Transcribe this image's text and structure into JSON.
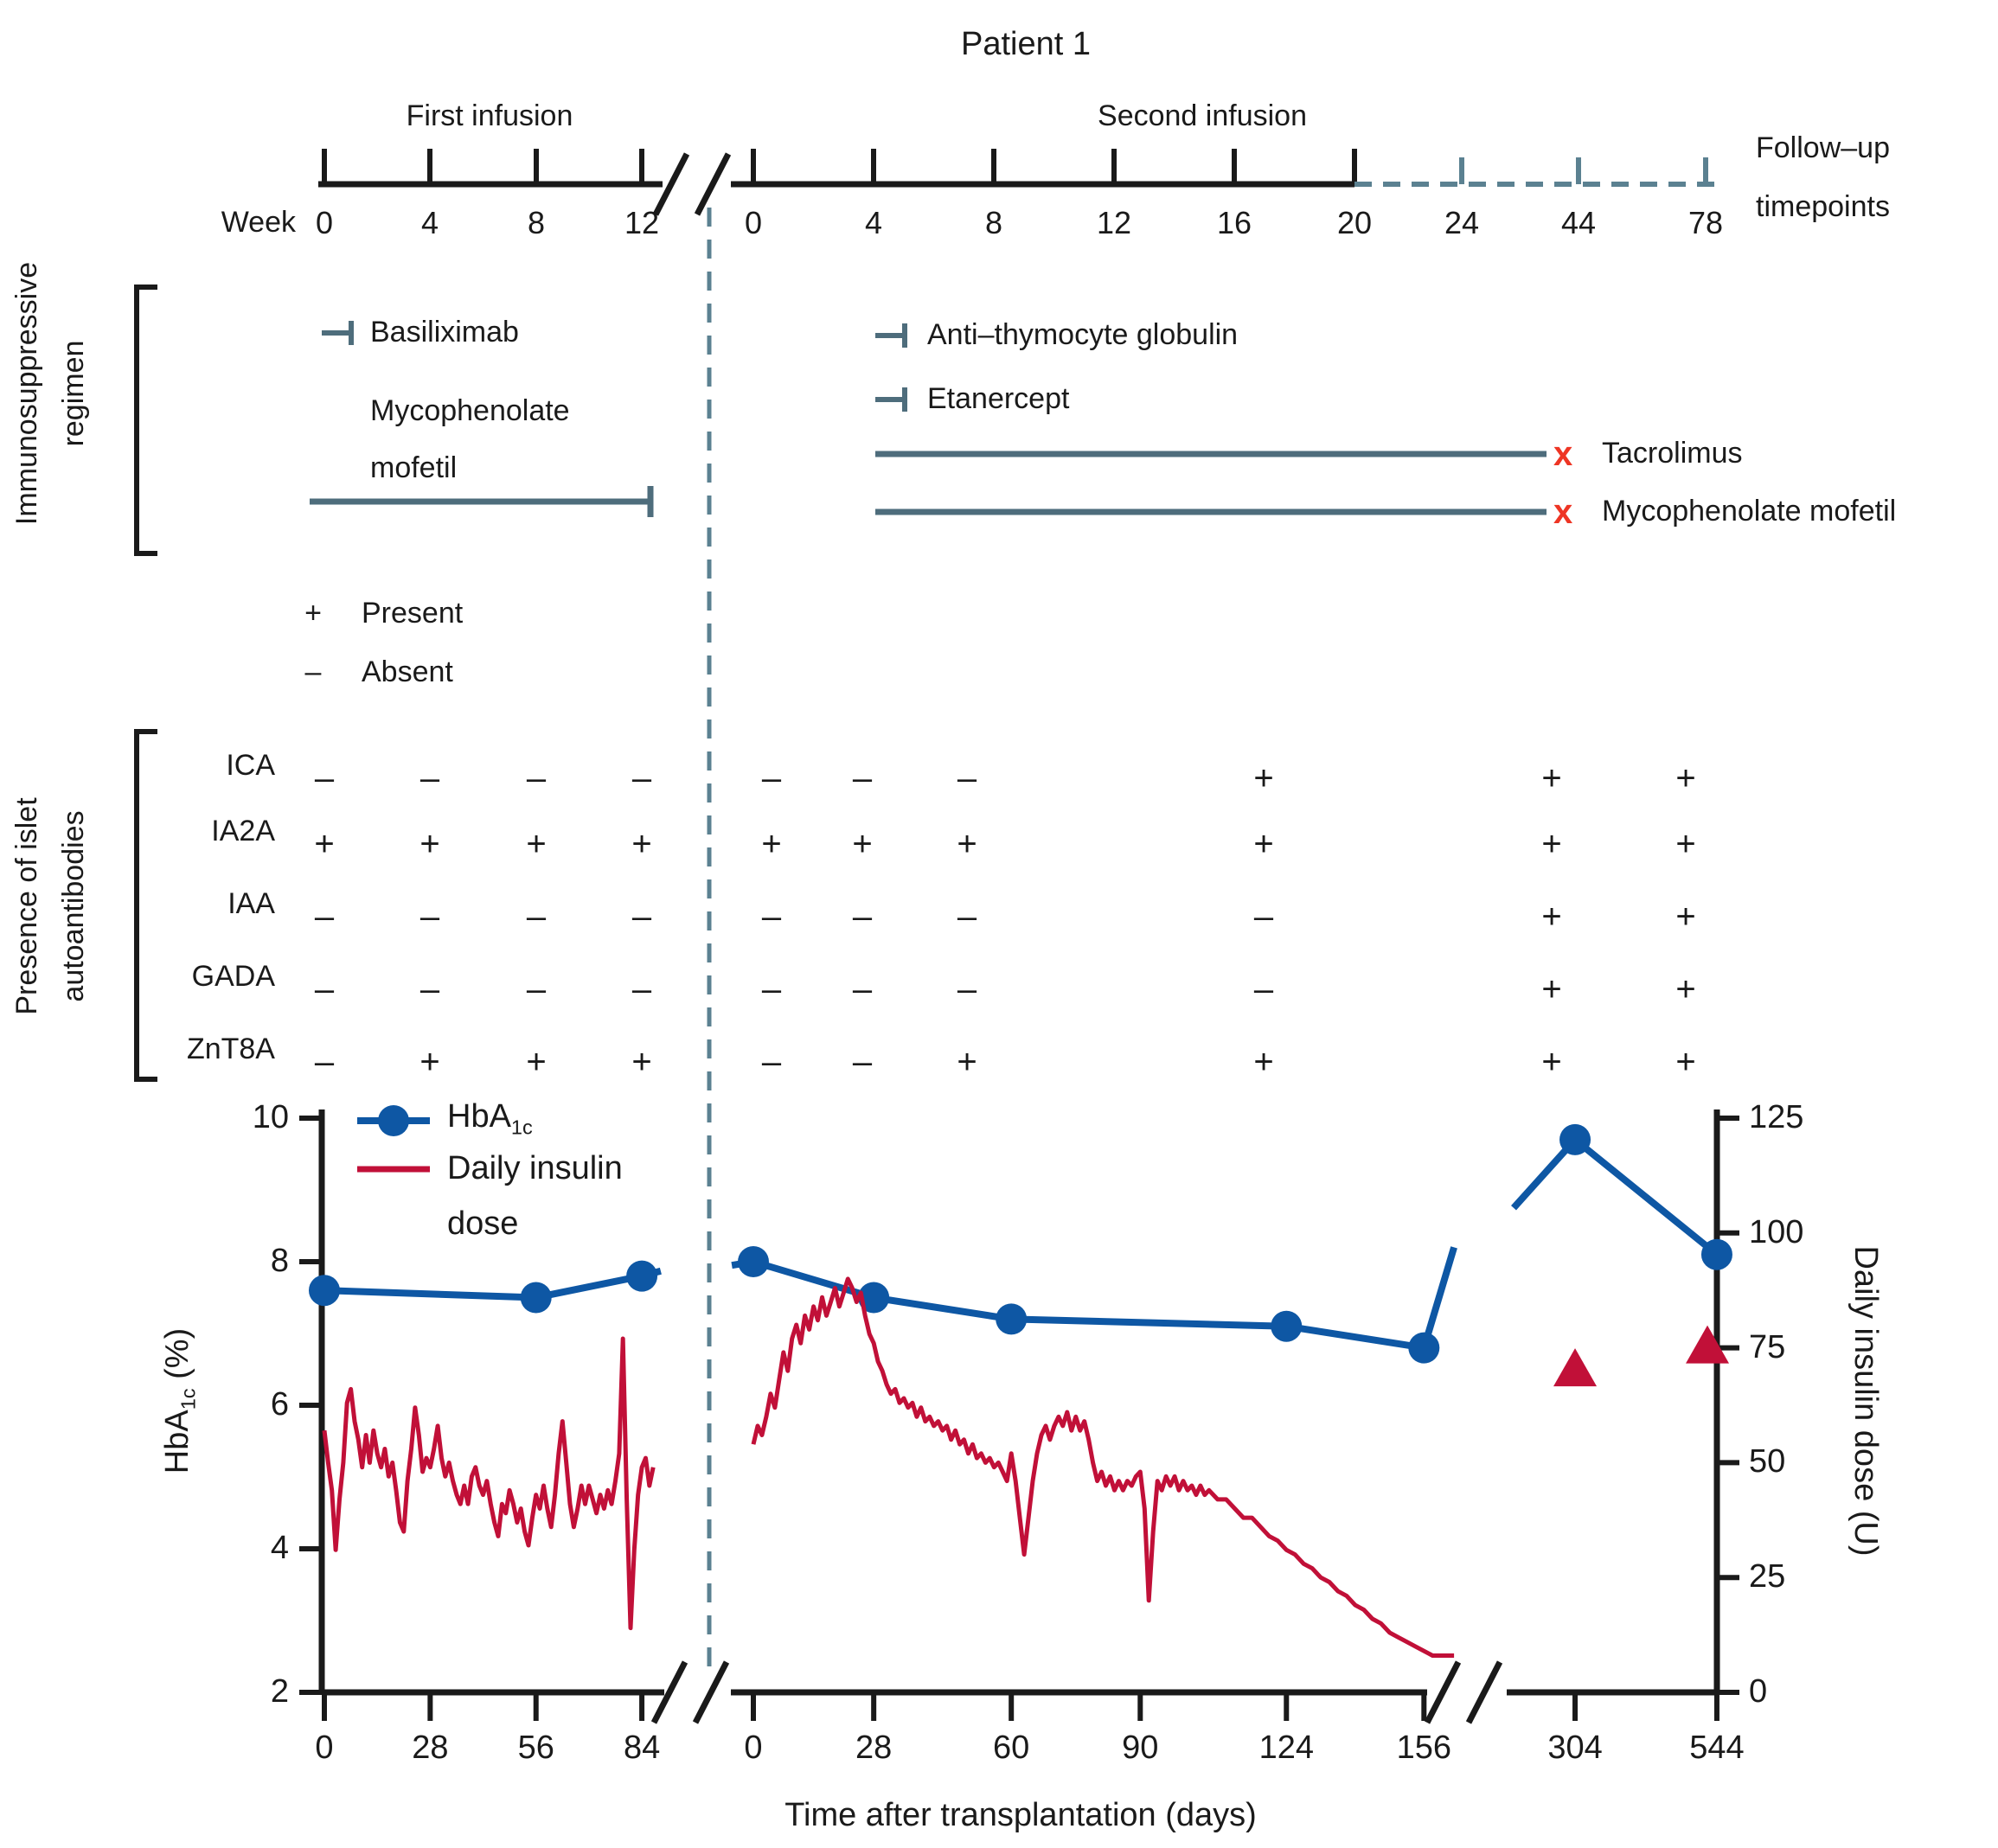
{
  "title": "Patient 1",
  "colors": {
    "blue": "#0e57a4",
    "crimson": "#c11038",
    "teal": "#4e6d7c",
    "teal_dash": "#5b8191",
    "x_red": "#ee3524",
    "ink": "#1a1a1a"
  },
  "timeline": {
    "week_label": "Week",
    "first_infusion": {
      "title": "First infusion",
      "ticks": [
        "0",
        "4",
        "8",
        "12"
      ]
    },
    "second_infusion": {
      "title": "Second infusion",
      "ticks": [
        "0",
        "4",
        "8",
        "12",
        "16",
        "20"
      ]
    },
    "followup": {
      "ticks": [
        "24",
        "44",
        "78"
      ],
      "label_line1": "Follow–up",
      "label_line2": "timepoints"
    }
  },
  "regimen": {
    "label_line1": "Immunosuppressive",
    "label_line2": "regimen",
    "basiliximab": "Basiliximab",
    "mmf_line1": "Mycophenolate",
    "mmf_line2": "mofetil",
    "atg": "Anti–thymocyte globulin",
    "etanercept": "Etanercept",
    "tacrolimus": "Tacrolimus",
    "mmf_second": "Mycophenolate mofetil",
    "x_symbol": "x"
  },
  "key": {
    "plus": "+",
    "plus_label": "Present",
    "minus": "–",
    "minus_label": "Absent"
  },
  "antibodies": {
    "label_line1": "Presence of islet",
    "label_line2": "autoantibodies",
    "rows": [
      {
        "label": "ICA",
        "values": [
          "–",
          "–",
          "–",
          "–",
          "–",
          "–",
          "–",
          "+",
          "+",
          "+"
        ]
      },
      {
        "label": "IA2A",
        "values": [
          "+",
          "+",
          "+",
          "+",
          "+",
          "+",
          "+",
          "+",
          "+",
          "+"
        ]
      },
      {
        "label": "IAA",
        "values": [
          "–",
          "–",
          "–",
          "–",
          "–",
          "–",
          "–",
          "–",
          "+",
          "+"
        ]
      },
      {
        "label": "GADA",
        "values": [
          "–",
          "–",
          "–",
          "–",
          "–",
          "–",
          "–",
          "–",
          "+",
          "+"
        ]
      },
      {
        "label": "ZnT8A",
        "values": [
          "–",
          "+",
          "+",
          "+",
          "–",
          "–",
          "+",
          "+",
          "+",
          "+"
        ]
      }
    ]
  },
  "chart_data": {
    "type": "line",
    "title": "Patient 1 — HbA1c and daily insulin dose after islet transplantation",
    "x_label": "Time after transplantation (days)",
    "y_left": {
      "label_main": "HbA",
      "label_sub": "1c",
      "label_suffix": " (%)",
      "ticks": [
        10,
        8,
        6,
        4,
        2
      ],
      "range": [
        2,
        10
      ]
    },
    "y_right": {
      "label": "Daily insulin dose (U)",
      "ticks": [
        125,
        100,
        75,
        50,
        25,
        0
      ],
      "range": [
        0,
        125
      ]
    },
    "x_segments": [
      {
        "name": "first-infusion",
        "ticks": [
          0,
          28,
          56,
          84
        ]
      },
      {
        "name": "second-infusion",
        "ticks": [
          0,
          28,
          60,
          90,
          124,
          156
        ]
      },
      {
        "name": "follow-up",
        "ticks": [
          304,
          544
        ]
      }
    ],
    "legend": {
      "hba1c_main": "HbA",
      "hba1c_sub": "1c",
      "insulin_line1": "Daily insulin",
      "insulin_line2": "dose"
    },
    "series": {
      "hba1c": {
        "axis": "left",
        "segments": [
          [
            [
              0,
              7.6,
              1
            ],
            [
              56,
              7.5,
              1
            ],
            [
              84,
              7.8,
              1
            ],
            [
              89,
              7.87,
              0
            ]
          ],
          [
            [
              -5,
              7.95,
              0
            ],
            [
              0,
              8.0,
              1
            ],
            [
              28,
              7.5,
              1
            ],
            [
              60,
              7.2,
              1
            ],
            [
              124,
              7.1,
              1
            ],
            [
              156,
              6.8,
              1
            ],
            [
              163,
              8.2,
              0
            ]
          ],
          [
            [
              200,
              8.75,
              0
            ],
            [
              304,
              9.7,
              1
            ],
            [
              544,
              8.1,
              1
            ]
          ]
        ]
      },
      "insulin_line": {
        "axis": "right",
        "segments": [
          [
            [
              0,
              57
            ],
            [
              1,
              50
            ],
            [
              2,
              44
            ],
            [
              3,
              31
            ],
            [
              4,
              42
            ],
            [
              5,
              50
            ],
            [
              6,
              63
            ],
            [
              7,
              66
            ],
            [
              8,
              59
            ],
            [
              9,
              55
            ],
            [
              10,
              49
            ],
            [
              11,
              56
            ],
            [
              12,
              50
            ],
            [
              13,
              57
            ],
            [
              14,
              52
            ],
            [
              15,
              49
            ],
            [
              16,
              53
            ],
            [
              17,
              47
            ],
            [
              18,
              50
            ],
            [
              19,
              44
            ],
            [
              20,
              37
            ],
            [
              21,
              35
            ],
            [
              22,
              46
            ],
            [
              23,
              53
            ],
            [
              24,
              62
            ],
            [
              25,
              56
            ],
            [
              26,
              48
            ],
            [
              27,
              51
            ],
            [
              28,
              49
            ],
            [
              29,
              53
            ],
            [
              30,
              58
            ],
            [
              31,
              51
            ],
            [
              32,
              47
            ],
            [
              33,
              50
            ],
            [
              34,
              46
            ],
            [
              35,
              43
            ],
            [
              36,
              41
            ],
            [
              37,
              45
            ],
            [
              38,
              41
            ],
            [
              39,
              47
            ],
            [
              40,
              49
            ],
            [
              41,
              45
            ],
            [
              42,
              43
            ],
            [
              43,
              46
            ],
            [
              44,
              41
            ],
            [
              45,
              37
            ],
            [
              46,
              34
            ],
            [
              47,
              41
            ],
            [
              48,
              39
            ],
            [
              49,
              44
            ],
            [
              50,
              41
            ],
            [
              51,
              37
            ],
            [
              52,
              40
            ],
            [
              53,
              35
            ],
            [
              54,
              32
            ],
            [
              55,
              38
            ],
            [
              56,
              43
            ],
            [
              57,
              40
            ],
            [
              58,
              45
            ],
            [
              59,
              40
            ],
            [
              60,
              36
            ],
            [
              61,
              43
            ],
            [
              62,
              52
            ],
            [
              63,
              59
            ],
            [
              64,
              50
            ],
            [
              65,
              41
            ],
            [
              66,
              36
            ],
            [
              67,
              40
            ],
            [
              68,
              45
            ],
            [
              69,
              41
            ],
            [
              70,
              45
            ],
            [
              71,
              42
            ],
            [
              72,
              39
            ],
            [
              73,
              43
            ],
            [
              74,
              40
            ],
            [
              75,
              44
            ],
            [
              76,
              41
            ],
            [
              77,
              46
            ],
            [
              78,
              52
            ],
            [
              79,
              77
            ],
            [
              80,
              42
            ],
            [
              81,
              14
            ],
            [
              82,
              31
            ],
            [
              83,
              43
            ],
            [
              84,
              49
            ],
            [
              85,
              51
            ],
            [
              86,
              45
            ],
            [
              87,
              49
            ]
          ],
          [
            [
              0,
              54
            ],
            [
              1,
              58
            ],
            [
              2,
              56
            ],
            [
              3,
              60
            ],
            [
              4,
              65
            ],
            [
              5,
              62
            ],
            [
              6,
              68
            ],
            [
              7,
              74
            ],
            [
              8,
              70
            ],
            [
              9,
              77
            ],
            [
              10,
              80
            ],
            [
              11,
              76
            ],
            [
              12,
              82
            ],
            [
              13,
              79
            ],
            [
              14,
              84
            ],
            [
              15,
              81
            ],
            [
              16,
              86
            ],
            [
              17,
              82
            ],
            [
              18,
              85
            ],
            [
              19,
              88
            ],
            [
              20,
              84
            ],
            [
              21,
              87
            ],
            [
              22,
              90
            ],
            [
              23,
              88
            ],
            [
              24,
              85
            ],
            [
              25,
              87
            ],
            [
              26,
              82
            ],
            [
              27,
              78
            ],
            [
              28,
              76
            ],
            [
              29,
              72
            ],
            [
              30,
              70
            ],
            [
              31,
              67
            ],
            [
              32,
              65
            ],
            [
              33,
              66
            ],
            [
              34,
              63
            ],
            [
              35,
              64
            ],
            [
              36,
              62
            ],
            [
              37,
              63
            ],
            [
              38,
              60
            ],
            [
              39,
              62
            ],
            [
              40,
              59
            ],
            [
              41,
              60
            ],
            [
              42,
              58
            ],
            [
              43,
              59
            ],
            [
              44,
              57
            ],
            [
              45,
              58
            ],
            [
              46,
              55
            ],
            [
              47,
              57
            ],
            [
              48,
              54
            ],
            [
              49,
              55
            ],
            [
              50,
              52
            ],
            [
              51,
              54
            ],
            [
              52,
              51
            ],
            [
              53,
              52
            ],
            [
              54,
              50
            ],
            [
              55,
              51
            ],
            [
              56,
              49
            ],
            [
              57,
              50
            ],
            [
              58,
              48
            ],
            [
              59,
              46
            ],
            [
              60,
              52
            ],
            [
              61,
              46
            ],
            [
              62,
              38
            ],
            [
              63,
              30
            ],
            [
              64,
              38
            ],
            [
              65,
              46
            ],
            [
              66,
              52
            ],
            [
              67,
              56
            ],
            [
              68,
              58
            ],
            [
              69,
              55
            ],
            [
              70,
              58
            ],
            [
              71,
              60
            ],
            [
              72,
              58
            ],
            [
              73,
              61
            ],
            [
              74,
              57
            ],
            [
              75,
              60
            ],
            [
              76,
              57
            ],
            [
              77,
              59
            ],
            [
              78,
              55
            ],
            [
              79,
              50
            ],
            [
              80,
              46
            ],
            [
              81,
              48
            ],
            [
              82,
              45
            ],
            [
              83,
              47
            ],
            [
              84,
              44
            ],
            [
              85,
              46
            ],
            [
              86,
              44
            ],
            [
              87,
              46
            ],
            [
              88,
              45
            ],
            [
              89,
              47
            ],
            [
              90,
              48
            ],
            [
              91,
              40
            ],
            [
              92,
              20
            ],
            [
              93,
              35
            ],
            [
              94,
              46
            ],
            [
              95,
              44
            ],
            [
              96,
              47
            ],
            [
              97,
              45
            ],
            [
              98,
              47
            ],
            [
              99,
              44
            ],
            [
              100,
              46
            ],
            [
              101,
              44
            ],
            [
              102,
              45
            ],
            [
              103,
              43
            ],
            [
              104,
              45
            ],
            [
              105,
              43
            ],
            [
              106,
              44
            ],
            [
              108,
              42
            ],
            [
              110,
              42
            ],
            [
              112,
              40
            ],
            [
              114,
              38
            ],
            [
              116,
              38
            ],
            [
              118,
              36
            ],
            [
              120,
              34
            ],
            [
              122,
              33
            ],
            [
              124,
              31
            ],
            [
              126,
              30
            ],
            [
              128,
              28
            ],
            [
              130,
              27
            ],
            [
              132,
              25
            ],
            [
              134,
              24
            ],
            [
              136,
              22
            ],
            [
              138,
              21
            ],
            [
              140,
              19
            ],
            [
              142,
              18
            ],
            [
              144,
              16
            ],
            [
              146,
              15
            ],
            [
              148,
              13
            ],
            [
              150,
              12
            ],
            [
              152,
              11
            ],
            [
              154,
              10
            ],
            [
              156,
              9
            ],
            [
              158,
              8
            ],
            [
              160,
              8
            ],
            [
              163,
              8
            ]
          ]
        ]
      },
      "insulin_triangles": {
        "axis": "right",
        "segment": 2,
        "points": [
          [
            304,
            70
          ],
          [
            528,
            75
          ]
        ]
      }
    }
  }
}
